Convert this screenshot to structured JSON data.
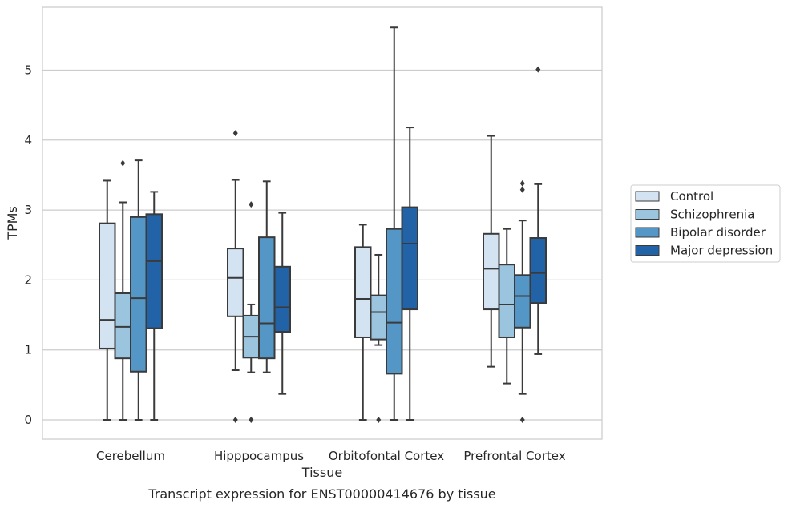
{
  "caption": "Transcript expression for ENST00000414676 by tissue",
  "chart_data": {
    "type": "boxplot",
    "xlabel": "Tissue",
    "ylabel": "TPMs",
    "ylim": [
      -0.28,
      5.87
    ],
    "yticks": [
      0,
      1,
      2,
      3,
      4,
      5
    ],
    "grid": true,
    "legend_position": "right",
    "categories": [
      "Cerebellum",
      "Hipppocampus",
      "Orbitofontal Cortex",
      "Prefrontal Cortex"
    ],
    "series": [
      {
        "name": "Control",
        "color": "#d3e3f2",
        "boxes": [
          {
            "whislo": 0.0,
            "q1": 1.02,
            "med": 1.43,
            "q3": 2.81,
            "whishi": 3.42,
            "fliers": []
          },
          {
            "whislo": 0.71,
            "q1": 1.48,
            "med": 2.03,
            "q3": 2.45,
            "whishi": 3.43,
            "fliers": [
              0.0,
              4.1
            ]
          },
          {
            "whislo": 0.0,
            "q1": 1.18,
            "med": 1.73,
            "q3": 2.47,
            "whishi": 2.79,
            "fliers": []
          },
          {
            "whislo": 0.76,
            "q1": 1.58,
            "med": 2.16,
            "q3": 2.66,
            "whishi": 4.06,
            "fliers": []
          }
        ]
      },
      {
        "name": "Schizophrenia",
        "color": "#9bc4de",
        "boxes": [
          {
            "whislo": 0.0,
            "q1": 0.88,
            "med": 1.33,
            "q3": 1.81,
            "whishi": 3.11,
            "fliers": [
              3.67
            ]
          },
          {
            "whislo": 0.68,
            "q1": 0.89,
            "med": 1.19,
            "q3": 1.49,
            "whishi": 1.65,
            "fliers": [
              0.0,
              3.08
            ]
          },
          {
            "whislo": 1.07,
            "q1": 1.15,
            "med": 1.54,
            "q3": 1.78,
            "whishi": 2.36,
            "fliers": [
              0.0
            ]
          },
          {
            "whislo": 0.52,
            "q1": 1.18,
            "med": 1.65,
            "q3": 2.22,
            "whishi": 2.73,
            "fliers": []
          }
        ]
      },
      {
        "name": "Bipolar disorder",
        "color": "#5497c6",
        "boxes": [
          {
            "whislo": 0.0,
            "q1": 0.69,
            "med": 1.74,
            "q3": 2.9,
            "whishi": 3.71,
            "fliers": []
          },
          {
            "whislo": 0.68,
            "q1": 0.88,
            "med": 1.38,
            "q3": 2.61,
            "whishi": 3.41,
            "fliers": []
          },
          {
            "whislo": 0.0,
            "q1": 0.66,
            "med": 1.39,
            "q3": 2.73,
            "whishi": 5.61,
            "fliers": []
          },
          {
            "whislo": 0.37,
            "q1": 1.32,
            "med": 1.77,
            "q3": 2.07,
            "whishi": 2.85,
            "fliers": [
              0.0,
              3.29,
              3.38
            ]
          }
        ]
      },
      {
        "name": "Major depression",
        "color": "#2262a6",
        "boxes": [
          {
            "whislo": 0.0,
            "q1": 1.31,
            "med": 2.27,
            "q3": 2.94,
            "whishi": 3.26,
            "fliers": []
          },
          {
            "whislo": 0.37,
            "q1": 1.26,
            "med": 1.61,
            "q3": 2.19,
            "whishi": 2.96,
            "fliers": []
          },
          {
            "whislo": 0.0,
            "q1": 1.58,
            "med": 2.52,
            "q3": 3.04,
            "whishi": 4.18,
            "fliers": []
          },
          {
            "whislo": 0.94,
            "q1": 1.67,
            "med": 2.1,
            "q3": 2.6,
            "whishi": 3.37,
            "fliers": [
              5.01
            ]
          }
        ]
      }
    ]
  }
}
